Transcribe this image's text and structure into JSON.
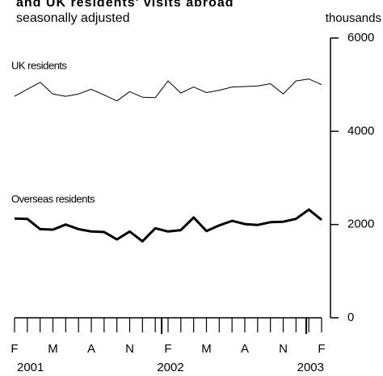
{
  "chart_data": {
    "type": "line",
    "title": "and UK residents' visits abroad",
    "subtitle": "seasonally adjusted",
    "y_unit": "thousands",
    "categories": [
      "F",
      null,
      null,
      "M",
      null,
      null,
      "A",
      null,
      null,
      "N",
      null,
      null,
      "F",
      null,
      null,
      "M",
      null,
      null,
      "A",
      null,
      null,
      "N",
      null,
      null,
      "F"
    ],
    "x_year_labels": [
      "2001",
      null,
      null,
      null,
      null,
      null,
      null,
      null,
      null,
      null,
      null,
      null,
      "2002",
      null,
      null,
      null,
      null,
      null,
      null,
      null,
      null,
      null,
      null,
      null,
      "2003"
    ],
    "series": [
      {
        "name": "UK residents",
        "color": "#000000",
        "width": 1,
        "values": [
          4750,
          4900,
          5050,
          4800,
          4750,
          4800,
          4900,
          4780,
          4650,
          4850,
          4730,
          4720,
          5080,
          4820,
          4950,
          4830,
          4880,
          4950,
          4960,
          4970,
          5020,
          4800,
          5080,
          5120,
          5000
        ]
      },
      {
        "name": "Overseas residents",
        "color": "#000000",
        "width": 3,
        "values": [
          2130,
          2120,
          1900,
          1890,
          2000,
          1900,
          1850,
          1840,
          1680,
          1850,
          1640,
          1920,
          1850,
          1880,
          2150,
          1860,
          1980,
          2080,
          2010,
          1990,
          2050,
          2060,
          2120,
          2320,
          2100
        ]
      }
    ],
    "ylim": [
      0,
      6000
    ],
    "yticks": [
      0,
      2000,
      4000,
      6000
    ],
    "y_axis_side": "right",
    "grid": false
  }
}
